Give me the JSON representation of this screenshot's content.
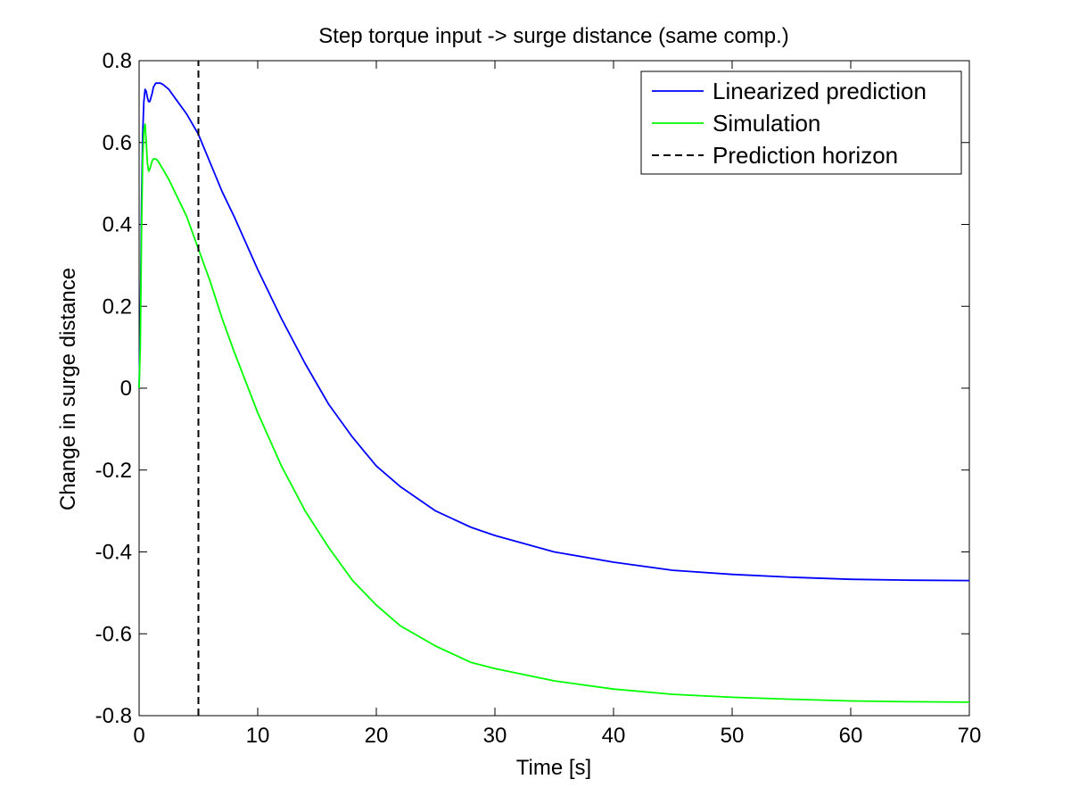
{
  "chart_data": {
    "type": "line",
    "title": "Step torque input -> surge distance (same comp.)",
    "xlabel": "Time [s]",
    "ylabel": "Change in surge distance",
    "xlim": [
      0,
      70
    ],
    "ylim": [
      -0.8,
      0.8
    ],
    "xticks": [
      0,
      10,
      20,
      30,
      40,
      50,
      60,
      70
    ],
    "xtick_labels": [
      "0",
      "10",
      "20",
      "30",
      "40",
      "50",
      "60",
      "70"
    ],
    "yticks": [
      -0.8,
      -0.6,
      -0.4,
      -0.2,
      0,
      0.2,
      0.4,
      0.6,
      0.8
    ],
    "ytick_labels": [
      "-0.8",
      "-0.6",
      "-0.4",
      "-0.2",
      "0",
      "0.2",
      "0.4",
      "0.6",
      "0.8"
    ],
    "grid": false,
    "legend_position": "top-right",
    "series": [
      {
        "name": "Linearized prediction",
        "color": "#0000ff",
        "style": "solid",
        "x": [
          0,
          0.1,
          0.2,
          0.3,
          0.4,
          0.5,
          0.6,
          0.7,
          0.8,
          0.9,
          1.0,
          1.1,
          1.2,
          1.4,
          1.6,
          1.8,
          2.0,
          2.5,
          3.0,
          4.0,
          5.0,
          6.0,
          7.0,
          8.0,
          10,
          12,
          14,
          16,
          18,
          20,
          22,
          25,
          28,
          30,
          35,
          40,
          45,
          50,
          55,
          60,
          65,
          70
        ],
        "y": [
          0,
          0.15,
          0.45,
          0.62,
          0.7,
          0.73,
          0.725,
          0.71,
          0.7,
          0.7,
          0.71,
          0.72,
          0.735,
          0.745,
          0.745,
          0.745,
          0.742,
          0.73,
          0.71,
          0.67,
          0.62,
          0.55,
          0.48,
          0.42,
          0.29,
          0.17,
          0.06,
          -0.04,
          -0.12,
          -0.19,
          -0.24,
          -0.3,
          -0.34,
          -0.36,
          -0.4,
          -0.425,
          -0.445,
          -0.455,
          -0.462,
          -0.467,
          -0.469,
          -0.47
        ]
      },
      {
        "name": "Simulation",
        "color": "#00ff00",
        "style": "solid",
        "x": [
          0,
          0.1,
          0.2,
          0.3,
          0.4,
          0.5,
          0.6,
          0.7,
          0.8,
          0.9,
          1.0,
          1.1,
          1.2,
          1.4,
          1.6,
          1.8,
          2.0,
          2.5,
          3.0,
          4.0,
          5.0,
          6.0,
          7.0,
          8.0,
          10,
          12,
          14,
          16,
          18,
          20,
          22,
          25,
          28,
          30,
          35,
          40,
          45,
          50,
          55,
          60,
          65,
          70
        ],
        "y": [
          0,
          0.1,
          0.38,
          0.56,
          0.63,
          0.645,
          0.6,
          0.55,
          0.53,
          0.535,
          0.545,
          0.555,
          0.56,
          0.56,
          0.555,
          0.545,
          0.535,
          0.51,
          0.48,
          0.42,
          0.34,
          0.26,
          0.17,
          0.09,
          -0.06,
          -0.19,
          -0.3,
          -0.39,
          -0.47,
          -0.53,
          -0.58,
          -0.63,
          -0.67,
          -0.685,
          -0.715,
          -0.735,
          -0.748,
          -0.755,
          -0.76,
          -0.764,
          -0.766,
          -0.767
        ]
      },
      {
        "name": "Prediction horizon",
        "color": "#000000",
        "style": "dashed",
        "x": [
          5,
          5
        ],
        "y": [
          -0.8,
          0.8
        ]
      }
    ]
  }
}
